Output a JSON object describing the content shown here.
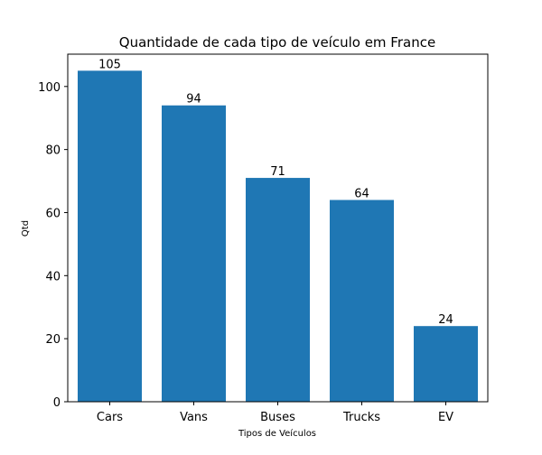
{
  "chart_data": {
    "type": "bar",
    "title": "Quantidade de cada tipo de veículo em France",
    "xlabel": "Tipos de Veículos",
    "ylabel": "Qtd",
    "categories": [
      "Cars",
      "Vans",
      "Buses",
      "Trucks",
      "EV"
    ],
    "values": [
      105,
      94,
      71,
      64,
      24
    ],
    "data_labels": [
      "105",
      "94",
      "71",
      "64",
      "24"
    ],
    "ylim": [
      0,
      110.25
    ],
    "yticks": [
      0,
      20,
      40,
      60,
      80,
      100
    ],
    "grid": false,
    "legend": "none",
    "bar_color": "#1f77b4"
  }
}
